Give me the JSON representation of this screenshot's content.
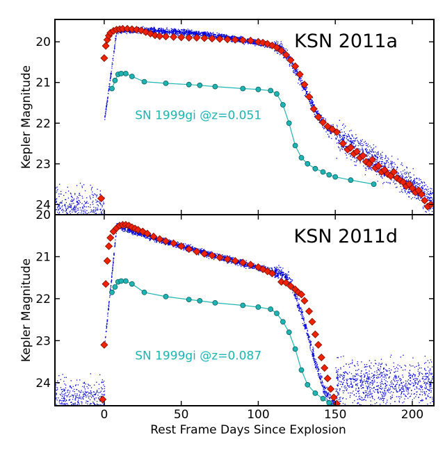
{
  "chart_data": {
    "type": "scatter",
    "x_range": [
      -32,
      214
    ],
    "xticks": [
      0,
      50,
      100,
      150,
      200
    ],
    "xlabel": "Rest Frame Days Since Explosion",
    "colors": {
      "raw": "#0000dd",
      "binned_fill": "#ee2200",
      "binned_edge": "#7a0c00",
      "template": "#1fb4b4",
      "template_edge": "#0d5c5c"
    },
    "panels": [
      {
        "id": "top",
        "title": "KSN 2011a",
        "ylabel": "Kepler Magnitude",
        "y_range": [
          24.25,
          19.45
        ],
        "yticks": [
          20,
          21,
          22,
          23,
          24
        ],
        "template_label": "SN 1999gi @z=0.051",
        "template_label_at": [
          20,
          21.9
        ],
        "peak_mag": 19.7,
        "plateau_end_mag": 20.1,
        "drop_start_day": 110,
        "drop_end_day": 150,
        "tail_mag": 22.6,
        "tail_slope": 0.025,
        "noise_mag": 23.9,
        "first_point": [
          -2,
          23.85
        ],
        "binned": [
          [
            0,
            20.4
          ],
          [
            1,
            20.1
          ],
          [
            2,
            19.95
          ],
          [
            3,
            19.85
          ],
          [
            4,
            19.78
          ],
          [
            6,
            19.73
          ],
          [
            8,
            19.7
          ],
          [
            10,
            19.69
          ],
          [
            12,
            19.68
          ],
          [
            15,
            19.68
          ],
          [
            18,
            19.69
          ],
          [
            21,
            19.7
          ],
          [
            24,
            19.72
          ],
          [
            27,
            19.76
          ],
          [
            30,
            19.8
          ],
          [
            33,
            19.84
          ],
          [
            36,
            19.86
          ],
          [
            40,
            19.87
          ],
          [
            45,
            19.88
          ],
          [
            50,
            19.89
          ],
          [
            55,
            19.9
          ],
          [
            60,
            19.9
          ],
          [
            65,
            19.91
          ],
          [
            70,
            19.92
          ],
          [
            75,
            19.93
          ],
          [
            80,
            19.94
          ],
          [
            85,
            19.95
          ],
          [
            90,
            19.96
          ],
          [
            95,
            19.97
          ],
          [
            100,
            20.0
          ],
          [
            103,
            20.02
          ],
          [
            106,
            20.05
          ],
          [
            109,
            20.09
          ],
          [
            112,
            20.14
          ],
          [
            115,
            20.22
          ],
          [
            118,
            20.32
          ],
          [
            121,
            20.45
          ],
          [
            124,
            20.6
          ],
          [
            127,
            20.8
          ],
          [
            130,
            21.05
          ],
          [
            133,
            21.35
          ],
          [
            136,
            21.65
          ],
          [
            139,
            21.85
          ],
          [
            142,
            21.98
          ],
          [
            145,
            22.08
          ],
          [
            148,
            22.15
          ],
          [
            151,
            22.22
          ],
          [
            155,
            22.5
          ],
          [
            158,
            22.65
          ],
          [
            160,
            22.6
          ],
          [
            162,
            22.75
          ],
          [
            164,
            22.7
          ],
          [
            166,
            22.85
          ],
          [
            168,
            22.8
          ],
          [
            170,
            22.95
          ],
          [
            172,
            23.0
          ],
          [
            174,
            22.9
          ],
          [
            176,
            23.1
          ],
          [
            178,
            23.05
          ],
          [
            180,
            23.2
          ],
          [
            182,
            23.15
          ],
          [
            184,
            23.25
          ],
          [
            186,
            23.3
          ],
          [
            188,
            23.2
          ],
          [
            190,
            23.35
          ],
          [
            192,
            23.4
          ],
          [
            194,
            23.45
          ],
          [
            196,
            23.55
          ],
          [
            198,
            23.5
          ],
          [
            200,
            23.6
          ],
          [
            202,
            23.7
          ],
          [
            204,
            23.65
          ],
          [
            206,
            23.75
          ],
          [
            208,
            23.9
          ],
          [
            210,
            24.05
          ],
          [
            212,
            24.0
          ]
        ],
        "template_points": [
          [
            5,
            21.15
          ],
          [
            7,
            20.95
          ],
          [
            9,
            20.8
          ],
          [
            11,
            20.78
          ],
          [
            14,
            20.78
          ],
          [
            18,
            20.85
          ],
          [
            26,
            20.98
          ],
          [
            40,
            21.02
          ],
          [
            55,
            21.05
          ],
          [
            62,
            21.07
          ],
          [
            72,
            21.1
          ],
          [
            90,
            21.15
          ],
          [
            100,
            21.17
          ],
          [
            108,
            21.2
          ],
          [
            112,
            21.28
          ],
          [
            116,
            21.55
          ],
          [
            120,
            22.0
          ],
          [
            124,
            22.55
          ],
          [
            128,
            22.85
          ],
          [
            132,
            23.0
          ],
          [
            137,
            23.12
          ],
          [
            142,
            23.2
          ],
          [
            146,
            23.27
          ],
          [
            150,
            23.32
          ],
          [
            160,
            23.4
          ],
          [
            175,
            23.5
          ]
        ]
      },
      {
        "id": "bottom",
        "title": "KSN 2011d",
        "ylabel": "Kepler Magnitude",
        "y_range": [
          24.55,
          20.0
        ],
        "yticks": [
          20,
          21,
          22,
          23,
          24
        ],
        "template_label": "SN 1999gi @z=0.087",
        "template_label_at": [
          20,
          23.45
        ],
        "peak_mag": 20.25,
        "plateau_end_mag": 21.4,
        "drop_start_day": 115,
        "drop_end_day": 150,
        "tail_mag": 24.6,
        "tail_slope": 0.0,
        "noise_mag": 24.2,
        "first_point": [
          -1,
          24.4
        ],
        "binned": [
          [
            0,
            23.1
          ],
          [
            1,
            21.65
          ],
          [
            2,
            21.1
          ],
          [
            3,
            20.75
          ],
          [
            4,
            20.55
          ],
          [
            6,
            20.4
          ],
          [
            8,
            20.32
          ],
          [
            10,
            20.26
          ],
          [
            12,
            20.24
          ],
          [
            14,
            20.24
          ],
          [
            16,
            20.26
          ],
          [
            18,
            20.3
          ],
          [
            20,
            20.33
          ],
          [
            22,
            20.36
          ],
          [
            25,
            20.4
          ],
          [
            28,
            20.45
          ],
          [
            32,
            20.52
          ],
          [
            36,
            20.58
          ],
          [
            40,
            20.63
          ],
          [
            45,
            20.68
          ],
          [
            50,
            20.75
          ],
          [
            55,
            20.82
          ],
          [
            60,
            20.88
          ],
          [
            65,
            20.93
          ],
          [
            70,
            20.97
          ],
          [
            75,
            21.02
          ],
          [
            80,
            21.06
          ],
          [
            85,
            21.1
          ],
          [
            90,
            21.14
          ],
          [
            95,
            21.19
          ],
          [
            100,
            21.25
          ],
          [
            103,
            21.3
          ],
          [
            106,
            21.35
          ],
          [
            109,
            21.4
          ],
          [
            115,
            21.6
          ],
          [
            118,
            21.62
          ],
          [
            121,
            21.7
          ],
          [
            124,
            21.78
          ],
          [
            126,
            21.85
          ],
          [
            128,
            21.9
          ],
          [
            130,
            22.05
          ],
          [
            133,
            22.3
          ],
          [
            135,
            22.55
          ],
          [
            137,
            22.85
          ],
          [
            139,
            23.1
          ],
          [
            141,
            23.4
          ],
          [
            143,
            23.65
          ],
          [
            145,
            23.9
          ],
          [
            147,
            24.15
          ],
          [
            149,
            24.35
          ],
          [
            151,
            24.5
          ]
        ],
        "template_points": [
          [
            5,
            21.85
          ],
          [
            7,
            21.72
          ],
          [
            9,
            21.6
          ],
          [
            11,
            21.58
          ],
          [
            14,
            21.58
          ],
          [
            18,
            21.65
          ],
          [
            26,
            21.85
          ],
          [
            40,
            21.95
          ],
          [
            55,
            22.02
          ],
          [
            62,
            22.05
          ],
          [
            72,
            22.1
          ],
          [
            90,
            22.16
          ],
          [
            100,
            22.2
          ],
          [
            108,
            22.25
          ],
          [
            112,
            22.35
          ],
          [
            116,
            22.55
          ],
          [
            120,
            22.8
          ],
          [
            124,
            23.2
          ],
          [
            128,
            23.7
          ],
          [
            132,
            24.05
          ],
          [
            137,
            24.25
          ],
          [
            142,
            24.38
          ],
          [
            146,
            24.48
          ],
          [
            150,
            24.55
          ]
        ]
      }
    ]
  }
}
